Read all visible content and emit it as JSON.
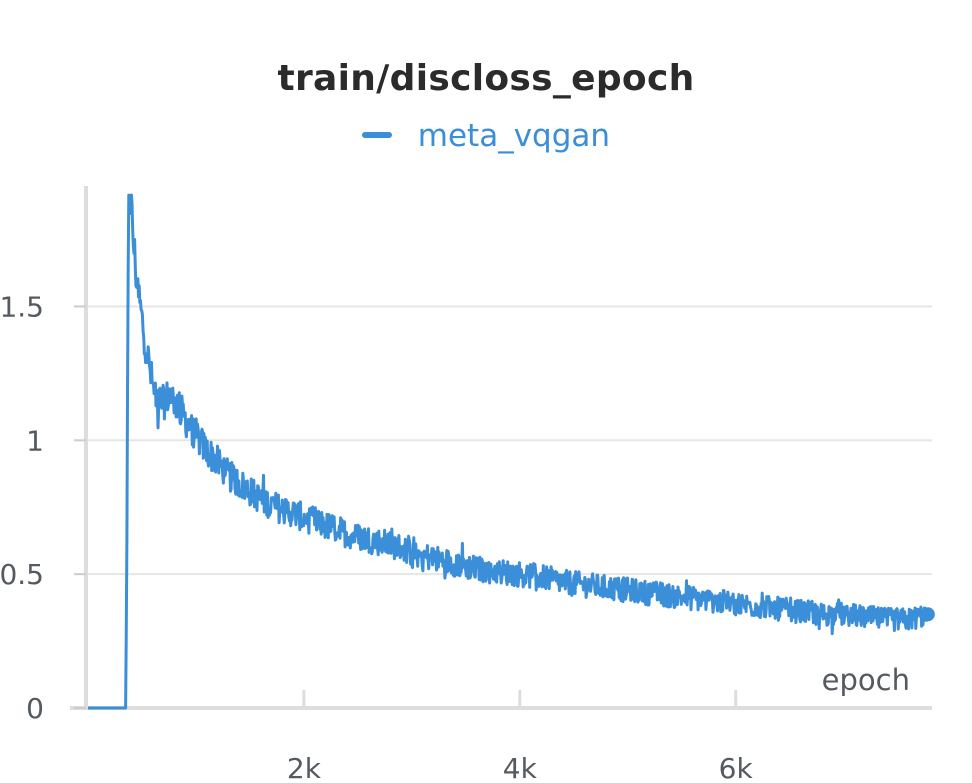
{
  "chart_data": {
    "type": "line",
    "title": "train/discloss_epoch",
    "xlabel": "epoch",
    "ylabel": "",
    "xlim": [
      0,
      7800
    ],
    "ylim": [
      0,
      1.95
    ],
    "xticks": [
      2000,
      4000,
      6000
    ],
    "xtick_labels": [
      "2k",
      "4k",
      "6k"
    ],
    "yticks": [
      0,
      0.5,
      1,
      1.5
    ],
    "ytick_labels": [
      "0",
      "0.5",
      "1",
      "1.5"
    ],
    "grid": true,
    "legend_position": "top-center",
    "colors": {
      "series": "#3b8ed8",
      "grid": "#e6e6e6",
      "axis": "#dddddd"
    },
    "series": [
      {
        "name": "meta_vqgan",
        "x": [
          0,
          350,
          360,
          370,
          380,
          400,
          420,
          450,
          500,
          550,
          600,
          650,
          700,
          750,
          800,
          850,
          900,
          1000,
          1100,
          1200,
          1300,
          1400,
          1500,
          1600,
          1700,
          1800,
          1900,
          2000,
          2100,
          2200,
          2300,
          2400,
          2500,
          2600,
          2700,
          2800,
          2900,
          3000,
          3200,
          3400,
          3600,
          3800,
          4000,
          4200,
          4400,
          4600,
          4800,
          5000,
          5200,
          5400,
          5600,
          5800,
          6000,
          6200,
          6400,
          6600,
          6800,
          7000,
          7200,
          7400,
          7600,
          7780
        ],
        "values": [
          0,
          0,
          0.6,
          1.5,
          1.95,
          1.88,
          1.75,
          1.6,
          1.45,
          1.32,
          1.2,
          1.15,
          1.14,
          1.17,
          1.15,
          1.12,
          1.08,
          1.02,
          0.96,
          0.92,
          0.87,
          0.84,
          0.81,
          0.78,
          0.76,
          0.74,
          0.73,
          0.71,
          0.7,
          0.68,
          0.67,
          0.65,
          0.64,
          0.63,
          0.62,
          0.61,
          0.6,
          0.58,
          0.56,
          0.54,
          0.52,
          0.51,
          0.5,
          0.49,
          0.47,
          0.46,
          0.45,
          0.44,
          0.43,
          0.42,
          0.41,
          0.4,
          0.39,
          0.38,
          0.37,
          0.36,
          0.35,
          0.35,
          0.34,
          0.33,
          0.33,
          0.35
        ],
        "noise": 0.035
      }
    ]
  }
}
